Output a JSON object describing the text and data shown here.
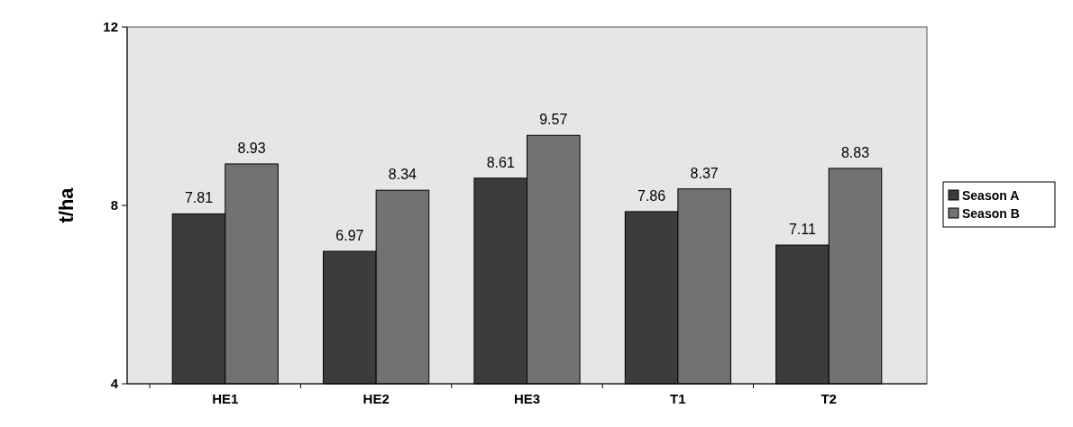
{
  "chart_data": {
    "type": "bar",
    "ylabel": "t/ha",
    "categories": [
      "HE1",
      "HE2",
      "HE3",
      "T1",
      "T2"
    ],
    "series": [
      {
        "name": "Season A",
        "color": "#3c3c3c",
        "values": [
          7.81,
          6.97,
          8.61,
          7.86,
          7.11
        ]
      },
      {
        "name": "Season B",
        "color": "#727272",
        "values": [
          8.93,
          8.34,
          9.57,
          8.37,
          8.83
        ]
      }
    ],
    "ylim": [
      4,
      12
    ],
    "yticks": [
      4,
      8,
      12
    ],
    "data_labels": true,
    "legend": "right",
    "grid": false
  }
}
